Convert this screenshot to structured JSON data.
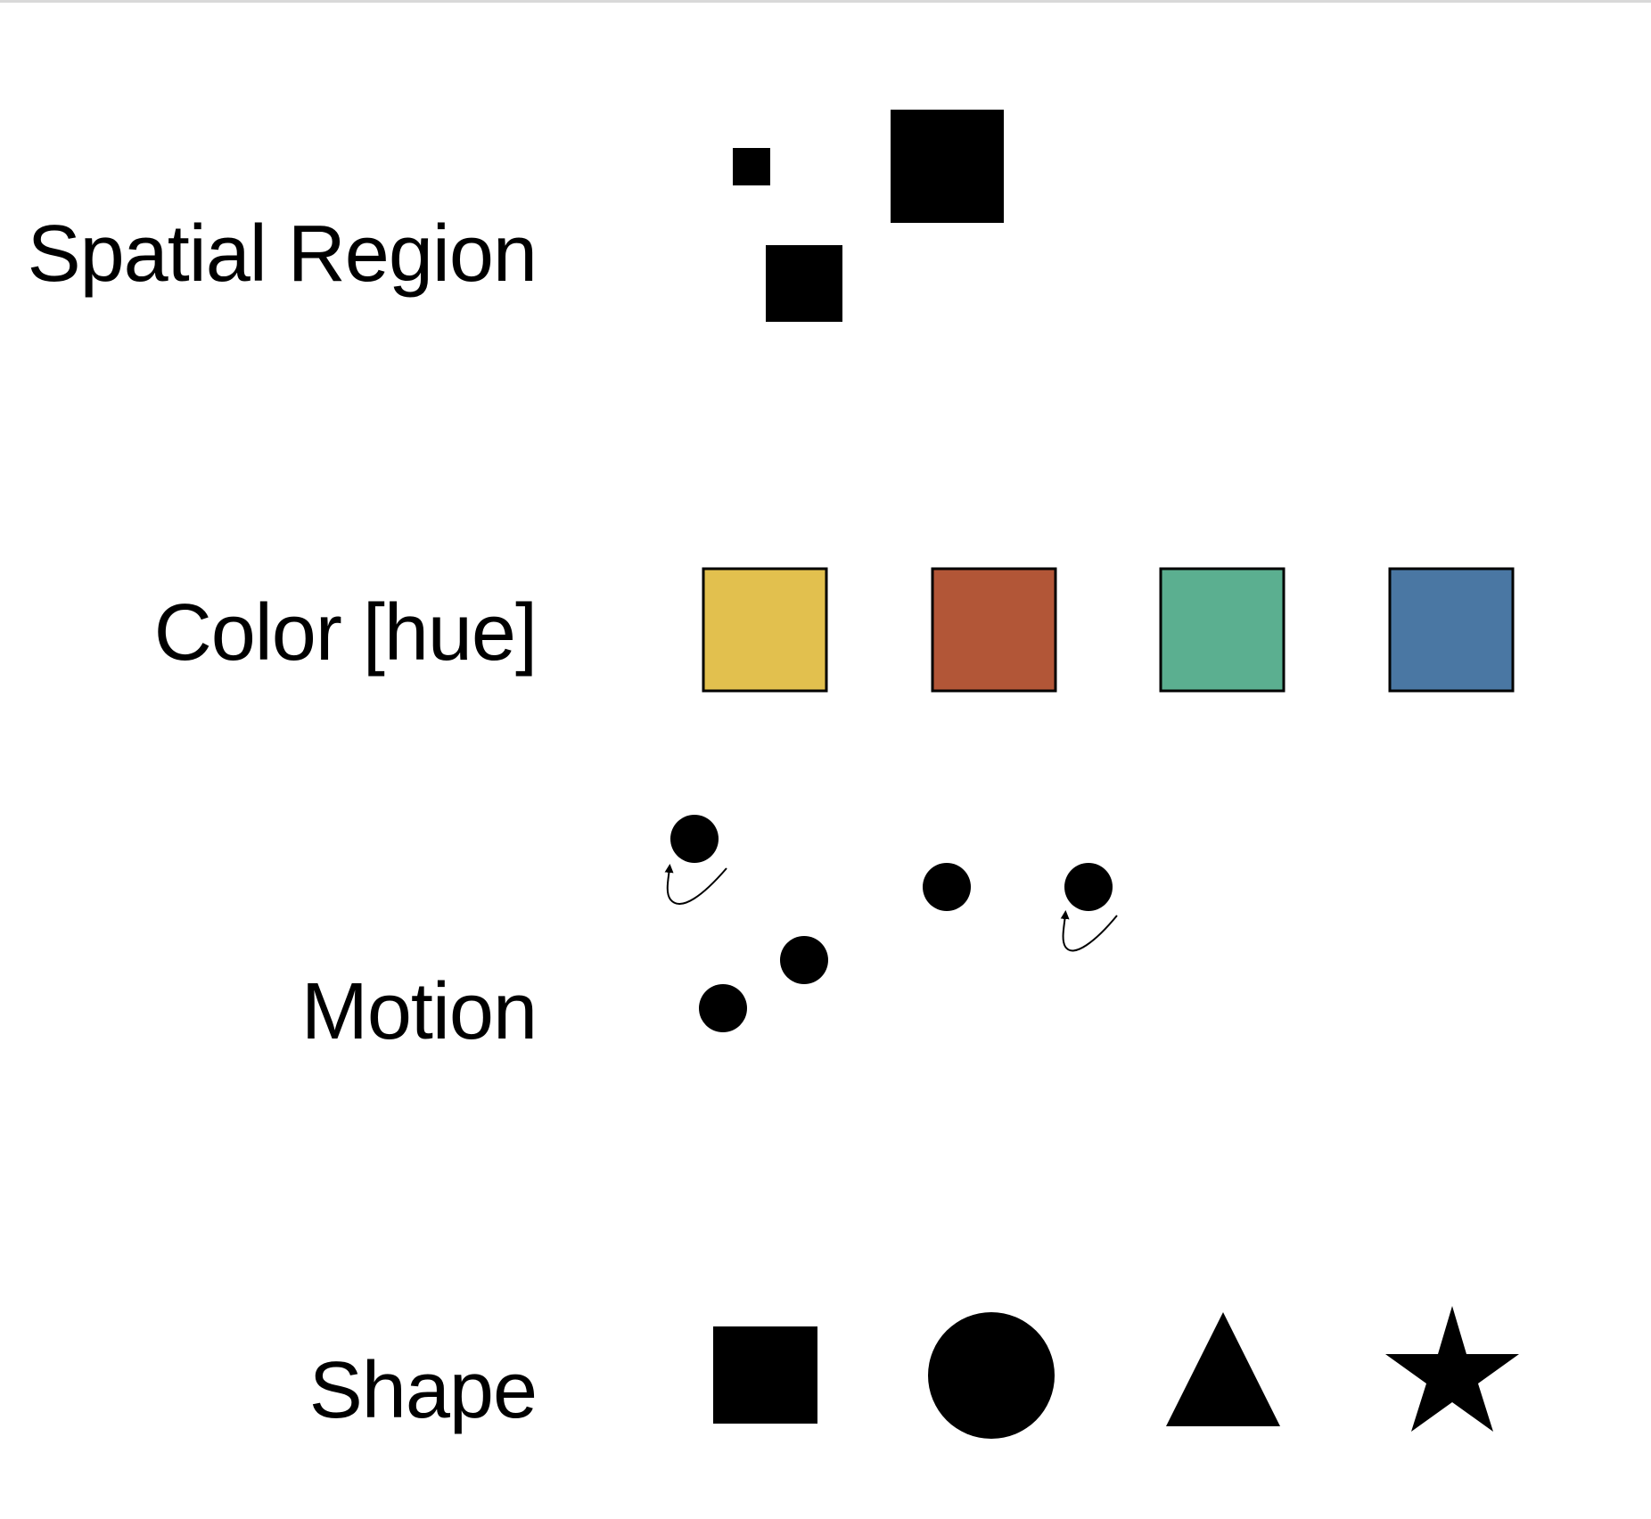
{
  "rows": {
    "spatial": {
      "label": "Spatial Region"
    },
    "color": {
      "label": "Color [hue]",
      "swatches": [
        "#E2C04E",
        "#B25637",
        "#5BAF90",
        "#4A77A3"
      ]
    },
    "motion": {
      "label": "Motion"
    },
    "shape": {
      "label": "Shape",
      "shapes": [
        "square",
        "circle",
        "triangle",
        "star"
      ]
    }
  },
  "colors": {
    "ink": "#000000",
    "background": "#ffffff",
    "top_rule": "#d9d9d9"
  }
}
